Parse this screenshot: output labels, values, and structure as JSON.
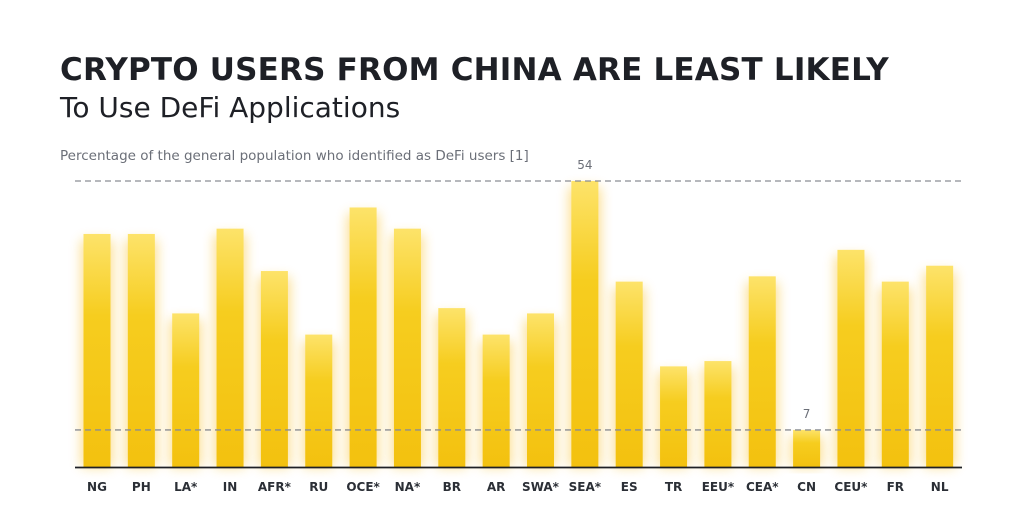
{
  "title": "CRYPTO USERS FROM CHINA ARE LEAST LIKELY",
  "subtitle": "To Use DeFi Applications",
  "caption": "Percentage of the general population who identified as DeFi users [1]",
  "colors": {
    "bar": "#f3c10f",
    "bar_top": "#fde36a",
    "axis": "#1e2026",
    "reference_line": "#8a8d93"
  },
  "chart_data": {
    "type": "bar",
    "title": "CRYPTO USERS FROM CHINA ARE LEAST LIKELY",
    "subtitle": "To Use DeFi Applications",
    "ylabel": "Percentage of the general population who identified as DeFi users [1]",
    "xlabel": "",
    "grid": false,
    "legend": "none",
    "ylim": [
      0,
      54
    ],
    "categories": [
      "NG",
      "PH",
      "LA*",
      "IN",
      "AFR*",
      "RU",
      "OCE*",
      "NA*",
      "BR",
      "AR",
      "SWA*",
      "SEA*",
      "ES",
      "TR",
      "EEU*",
      "CEA*",
      "CN",
      "CEU*",
      "FR",
      "NL"
    ],
    "values": [
      44,
      44,
      29,
      45,
      37,
      25,
      49,
      45,
      30,
      25,
      29,
      54,
      35,
      19,
      20,
      36,
      7,
      41,
      35,
      38
    ],
    "data_labels": [
      {
        "category": "SEA*",
        "text": "54"
      },
      {
        "category": "CN",
        "text": "7"
      }
    ],
    "reference_lines": [
      54,
      7
    ]
  }
}
